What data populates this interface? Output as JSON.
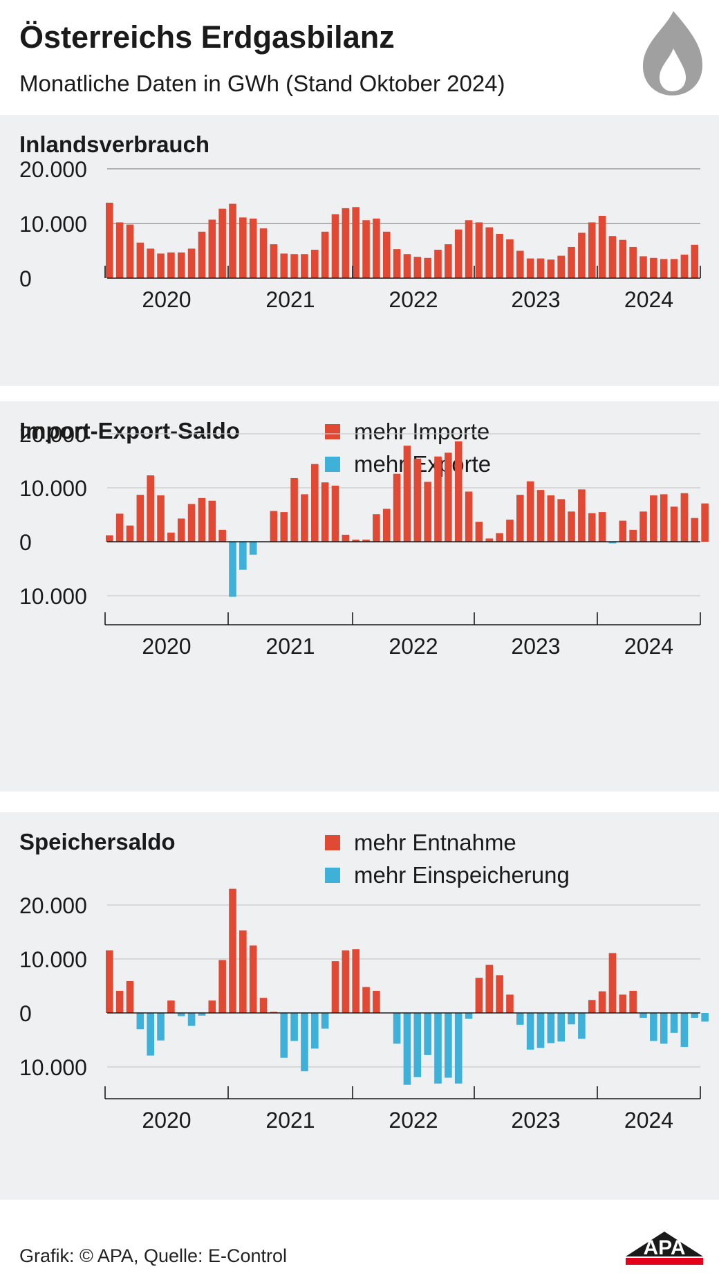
{
  "header": {
    "title": "Österreichs Erdgasbilanz",
    "subtitle": "Monatliche Daten in GWh (Stand Oktober 2024)"
  },
  "footer": {
    "source": "Grafik: © APA, Quelle: E-Control",
    "logo": "APA"
  },
  "icons": {
    "flame": "flame-icon"
  },
  "colors": {
    "positive": "#e04a34",
    "negative": "#3fb0d8",
    "panel_bg": "#eff0f1",
    "logo_red": "#e4001b"
  },
  "chart_data": [
    {
      "type": "bar",
      "title": "Inlandsverbrauch",
      "legend": [],
      "ylim": [
        0,
        20000
      ],
      "ytick_values": [
        0,
        10000,
        20000
      ],
      "ytick_labels": [
        "0",
        "10.000",
        "20.000"
      ],
      "year_labels": [
        "2020",
        "2021",
        "2022",
        "2023",
        "2024"
      ],
      "series": [
        {
          "values": [
            13800,
            10200,
            9800,
            6500,
            5400,
            4500,
            4700,
            4700,
            5400,
            8500,
            10700,
            12700,
            13600,
            11100,
            10900,
            9100,
            6200,
            4500,
            4400,
            4400,
            5200,
            8500,
            11700,
            12800,
            13000,
            10600,
            10900,
            8500,
            5300,
            4400,
            3900,
            3700,
            5200,
            6200,
            8900,
            10600,
            10200,
            9300,
            8100,
            7100,
            5000,
            3600,
            3600,
            3400,
            4100,
            5700,
            8300,
            10200,
            11400,
            7700,
            7000,
            5700,
            4000,
            3700,
            3500,
            3500,
            4300,
            6100
          ]
        }
      ]
    },
    {
      "type": "bar",
      "title": "Import-Export-Saldo",
      "legend": [
        "mehr Importe",
        "mehr Exporte"
      ],
      "ylim": [
        -15000,
        20000
      ],
      "ytick_values": [
        -10000,
        0,
        10000,
        20000
      ],
      "ytick_labels": [
        "10.000",
        "0",
        "10.000",
        "20.000"
      ],
      "year_labels": [
        "2020",
        "2021",
        "2022",
        "2023",
        "2024"
      ],
      "series": [
        {
          "values": [
            1200,
            5200,
            3000,
            8700,
            12300,
            8600,
            1700,
            4300,
            7000,
            8100,
            7600,
            2200,
            -10200,
            -5200,
            -2400,
            0,
            5700,
            5500,
            11800,
            8800,
            14400,
            11000,
            10400,
            1300,
            400,
            400,
            5100,
            6100,
            12600,
            17800,
            15400,
            11100,
            15800,
            16500,
            18600,
            9300,
            3700,
            600,
            1600,
            4100,
            8700,
            11200,
            9600,
            8600,
            7900,
            5600,
            9700,
            5300,
            5500,
            -300,
            3900,
            2200,
            5600,
            8600,
            8800,
            6500,
            9000,
            4400,
            7100
          ]
        }
      ]
    },
    {
      "type": "bar",
      "title": "Speichersaldo",
      "legend": [
        "mehr Entnahme",
        "mehr Einspeicherung"
      ],
      "ylim": [
        -15000,
        23000
      ],
      "ytick_values": [
        -10000,
        0,
        10000,
        20000
      ],
      "ytick_labels": [
        "10.000",
        "0",
        "10.000",
        "20.000"
      ],
      "year_labels": [
        "2020",
        "2021",
        "2022",
        "2023",
        "2024"
      ],
      "series": [
        {
          "values": [
            11600,
            4100,
            5900,
            -3000,
            -7900,
            -5100,
            2300,
            -600,
            -2400,
            -500,
            2300,
            9800,
            23000,
            15300,
            12500,
            2800,
            200,
            -8300,
            -5200,
            -10800,
            -6600,
            -2900,
            9600,
            11600,
            11800,
            4800,
            4100,
            0,
            -5700,
            -13300,
            -11900,
            -7800,
            -13100,
            -12000,
            -13100,
            -1100,
            6500,
            8900,
            7000,
            3400,
            -2200,
            -6800,
            -6500,
            -5600,
            -5300,
            -2100,
            -4800,
            2400,
            4000,
            11100,
            3400,
            4100,
            -900,
            -5200,
            -5700,
            -3700,
            -6300,
            -900,
            -1600
          ]
        }
      ]
    }
  ]
}
